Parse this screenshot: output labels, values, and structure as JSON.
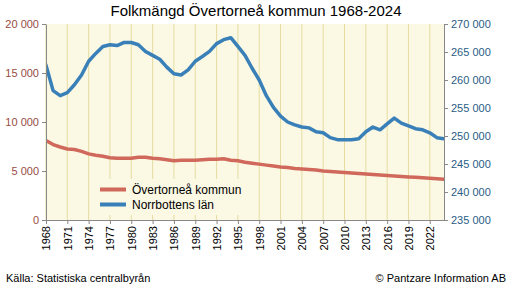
{
  "chart_data": {
    "type": "line",
    "title": "Folkmängd Övertorneå kommun 1968-2024",
    "source": "Källa: Statistiska centralbyrån",
    "copyright": "© Pantzare Information AB",
    "x": [
      1968,
      1969,
      1970,
      1971,
      1972,
      1973,
      1974,
      1975,
      1976,
      1977,
      1978,
      1979,
      1980,
      1981,
      1982,
      1983,
      1984,
      1985,
      1986,
      1987,
      1988,
      1989,
      1990,
      1991,
      1992,
      1993,
      1994,
      1995,
      1996,
      1997,
      1998,
      1999,
      2000,
      2001,
      2002,
      2003,
      2004,
      2005,
      2006,
      2007,
      2008,
      2009,
      2010,
      2011,
      2012,
      2013,
      2014,
      2015,
      2016,
      2017,
      2018,
      2019,
      2020,
      2021,
      2022,
      2023,
      2024
    ],
    "xlim": [
      1968,
      2024
    ],
    "xticks": [
      1968,
      1971,
      1974,
      1977,
      1980,
      1983,
      1986,
      1989,
      1992,
      1995,
      1998,
      2001,
      2004,
      2007,
      2010,
      2013,
      2016,
      2019,
      2022
    ],
    "ylim": [
      0,
      20000
    ],
    "yticks": [
      0,
      {
        "value": 5000,
        "label": "5 000"
      },
      {
        "value": 10000,
        "label": "10 000"
      },
      {
        "value": 15000,
        "label": "15 000"
      },
      {
        "value": 20000,
        "label": "20 000"
      }
    ],
    "y2lim": [
      235000,
      270000
    ],
    "y2ticks": [
      {
        "value": 235000,
        "label": "235 000"
      },
      {
        "value": 240000,
        "label": "240 000"
      },
      {
        "value": 245000,
        "label": "245 000"
      },
      {
        "value": 250000,
        "label": "250 000"
      },
      {
        "value": 255000,
        "label": "255 000"
      },
      {
        "value": 260000,
        "label": "260 000"
      },
      {
        "value": 265000,
        "label": "265 000"
      },
      {
        "value": 270000,
        "label": "270 000"
      }
    ],
    "grid": "x",
    "legend": "lower left",
    "series": [
      {
        "name": "Övertorneå kommun",
        "color": "#d0695b",
        "values": [
          8100,
          7700,
          7450,
          7250,
          7200,
          7000,
          6750,
          6600,
          6500,
          6350,
          6300,
          6300,
          6300,
          6400,
          6400,
          6300,
          6250,
          6150,
          6050,
          6100,
          6100,
          6100,
          6150,
          6200,
          6200,
          6250,
          6100,
          6050,
          5900,
          5800,
          5700,
          5600,
          5500,
          5400,
          5350,
          5250,
          5200,
          5150,
          5100,
          5000,
          4950,
          4900,
          4850,
          4800,
          4750,
          4700,
          4650,
          4600,
          4550,
          4500,
          4450,
          4400,
          4350,
          4300,
          4250,
          4200,
          4150
        ]
      },
      {
        "name": "Norrbottens län",
        "color": "#3a80b8",
        "axis": "y2",
        "values": [
          262650,
          258100,
          257200,
          257750,
          259150,
          260900,
          263350,
          264750,
          265975,
          266300,
          266150,
          266700,
          266700,
          266300,
          265100,
          264400,
          263700,
          262300,
          261100,
          260900,
          261800,
          263350,
          264200,
          265100,
          266500,
          267200,
          267550,
          266000,
          264400,
          262100,
          260000,
          257200,
          255100,
          253550,
          252500,
          251975,
          251600,
          251450,
          250750,
          250575,
          249700,
          249350,
          249350,
          249350,
          249500,
          250750,
          251600,
          251100,
          252150,
          253200,
          252300,
          251800,
          251300,
          251100,
          250575,
          249700,
          249500
        ]
      }
    ]
  }
}
